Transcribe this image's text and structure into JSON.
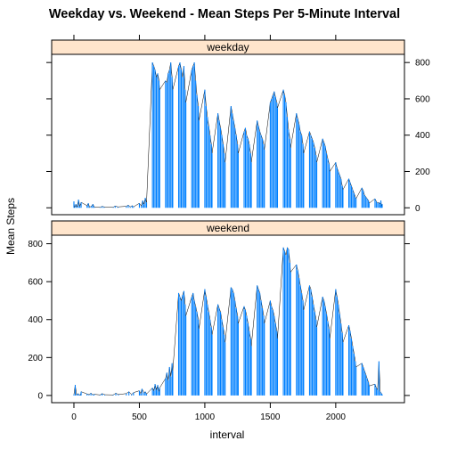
{
  "chart_data": {
    "type": "line",
    "title": "Weekday vs. Weekend - Mean Steps Per 5-Minute Interval",
    "xlabel": "interval",
    "ylabel": "Mean Steps",
    "xlim": [
      -170,
      2525
    ],
    "ylim": [
      -38,
      845
    ],
    "x_ticks": [
      0,
      500,
      1000,
      1500,
      2000
    ],
    "y_ticks": [
      0,
      200,
      400,
      600,
      800
    ],
    "plot_style": "h",
    "series_color": "#0080ff",
    "strip_fill": "#ffe5cc",
    "panels": [
      {
        "name": "weekday",
        "points": [
          [
            0,
            35
          ],
          [
            5,
            2
          ],
          [
            15,
            20
          ],
          [
            25,
            5
          ],
          [
            35,
            45
          ],
          [
            45,
            8
          ],
          [
            55,
            30
          ],
          [
            100,
            12
          ],
          [
            110,
            25
          ],
          [
            120,
            3
          ],
          [
            135,
            10
          ],
          [
            145,
            20
          ],
          [
            155,
            5
          ],
          [
            200,
            3
          ],
          [
            215,
            8
          ],
          [
            230,
            5
          ],
          [
            300,
            3
          ],
          [
            315,
            10
          ],
          [
            335,
            5
          ],
          [
            400,
            8
          ],
          [
            415,
            15
          ],
          [
            430,
            5
          ],
          [
            445,
            12
          ],
          [
            455,
            5
          ],
          [
            500,
            25
          ],
          [
            515,
            10
          ],
          [
            525,
            40
          ],
          [
            535,
            20
          ],
          [
            545,
            55
          ],
          [
            555,
            30
          ],
          [
            600,
            800
          ],
          [
            610,
            780
          ],
          [
            620,
            760
          ],
          [
            630,
            720
          ],
          [
            640,
            740
          ],
          [
            650,
            700
          ],
          [
            655,
            650
          ],
          [
            700,
            700
          ],
          [
            710,
            690
          ],
          [
            720,
            740
          ],
          [
            730,
            760
          ],
          [
            740,
            800
          ],
          [
            750,
            720
          ],
          [
            755,
            650
          ],
          [
            800,
            780
          ],
          [
            810,
            800
          ],
          [
            820,
            760
          ],
          [
            830,
            720
          ],
          [
            840,
            780
          ],
          [
            850,
            650
          ],
          [
            855,
            580
          ],
          [
            900,
            760
          ],
          [
            910,
            780
          ],
          [
            920,
            800
          ],
          [
            930,
            700
          ],
          [
            940,
            620
          ],
          [
            950,
            560
          ],
          [
            955,
            480
          ],
          [
            1000,
            650
          ],
          [
            1010,
            560
          ],
          [
            1020,
            500
          ],
          [
            1030,
            450
          ],
          [
            1040,
            400
          ],
          [
            1050,
            350
          ],
          [
            1055,
            300
          ],
          [
            1100,
            520
          ],
          [
            1110,
            480
          ],
          [
            1120,
            440
          ],
          [
            1130,
            400
          ],
          [
            1140,
            350
          ],
          [
            1150,
            300
          ],
          [
            1155,
            250
          ],
          [
            1200,
            560
          ],
          [
            1210,
            520
          ],
          [
            1220,
            480
          ],
          [
            1230,
            440
          ],
          [
            1240,
            400
          ],
          [
            1250,
            350
          ],
          [
            1255,
            300
          ],
          [
            1300,
            420
          ],
          [
            1310,
            440
          ],
          [
            1320,
            400
          ],
          [
            1330,
            380
          ],
          [
            1340,
            350
          ],
          [
            1350,
            300
          ],
          [
            1355,
            250
          ],
          [
            1400,
            480
          ],
          [
            1410,
            450
          ],
          [
            1420,
            420
          ],
          [
            1430,
            400
          ],
          [
            1440,
            380
          ],
          [
            1450,
            350
          ],
          [
            1455,
            320
          ],
          [
            1500,
            580
          ],
          [
            1510,
            600
          ],
          [
            1520,
            620
          ],
          [
            1530,
            640
          ],
          [
            1540,
            610
          ],
          [
            1550,
            580
          ],
          [
            1555,
            550
          ],
          [
            1600,
            650
          ],
          [
            1610,
            620
          ],
          [
            1620,
            580
          ],
          [
            1630,
            500
          ],
          [
            1640,
            430
          ],
          [
            1650,
            380
          ],
          [
            1655,
            330
          ],
          [
            1700,
            520
          ],
          [
            1710,
            490
          ],
          [
            1720,
            460
          ],
          [
            1730,
            420
          ],
          [
            1740,
            400
          ],
          [
            1750,
            350
          ],
          [
            1755,
            300
          ],
          [
            1800,
            420
          ],
          [
            1810,
            400
          ],
          [
            1820,
            380
          ],
          [
            1830,
            360
          ],
          [
            1840,
            330
          ],
          [
            1850,
            290
          ],
          [
            1855,
            250
          ],
          [
            1900,
            380
          ],
          [
            1910,
            360
          ],
          [
            1920,
            340
          ],
          [
            1930,
            300
          ],
          [
            1940,
            270
          ],
          [
            1950,
            240
          ],
          [
            1955,
            200
          ],
          [
            2000,
            250
          ],
          [
            2010,
            220
          ],
          [
            2020,
            200
          ],
          [
            2030,
            180
          ],
          [
            2040,
            160
          ],
          [
            2050,
            120
          ],
          [
            2055,
            100
          ],
          [
            2100,
            160
          ],
          [
            2110,
            140
          ],
          [
            2120,
            120
          ],
          [
            2130,
            100
          ],
          [
            2140,
            80
          ],
          [
            2150,
            60
          ],
          [
            2155,
            50
          ],
          [
            2200,
            110
          ],
          [
            2210,
            95
          ],
          [
            2220,
            70
          ],
          [
            2230,
            60
          ],
          [
            2240,
            50
          ],
          [
            2250,
            40
          ],
          [
            2255,
            25
          ],
          [
            2300,
            50
          ],
          [
            2310,
            35
          ],
          [
            2320,
            25
          ],
          [
            2330,
            30
          ],
          [
            2340,
            20
          ],
          [
            2345,
            40
          ],
          [
            2350,
            10
          ],
          [
            2355,
            20
          ]
        ]
      },
      {
        "name": "weekend",
        "points": [
          [
            0,
            5
          ],
          [
            10,
            55
          ],
          [
            20,
            3
          ],
          [
            30,
            10
          ],
          [
            40,
            4
          ],
          [
            50,
            3
          ],
          [
            55,
            20
          ],
          [
            100,
            8
          ],
          [
            115,
            5
          ],
          [
            130,
            12
          ],
          [
            145,
            4
          ],
          [
            155,
            6
          ],
          [
            200,
            3
          ],
          [
            215,
            10
          ],
          [
            235,
            4
          ],
          [
            300,
            3
          ],
          [
            320,
            12
          ],
          [
            340,
            5
          ],
          [
            400,
            10
          ],
          [
            420,
            20
          ],
          [
            440,
            5
          ],
          [
            455,
            15
          ],
          [
            500,
            25
          ],
          [
            510,
            10
          ],
          [
            520,
            35
          ],
          [
            535,
            15
          ],
          [
            545,
            20
          ],
          [
            555,
            8
          ],
          [
            600,
            40
          ],
          [
            610,
            25
          ],
          [
            620,
            60
          ],
          [
            630,
            30
          ],
          [
            640,
            55
          ],
          [
            650,
            20
          ],
          [
            655,
            40
          ],
          [
            700,
            90
          ],
          [
            710,
            120
          ],
          [
            720,
            80
          ],
          [
            730,
            150
          ],
          [
            740,
            100
          ],
          [
            750,
            170
          ],
          [
            755,
            130
          ],
          [
            800,
            540
          ],
          [
            810,
            520
          ],
          [
            820,
            500
          ],
          [
            830,
            530
          ],
          [
            840,
            550
          ],
          [
            850,
            480
          ],
          [
            855,
            420
          ],
          [
            900,
            520
          ],
          [
            910,
            540
          ],
          [
            920,
            500
          ],
          [
            930,
            470
          ],
          [
            940,
            440
          ],
          [
            950,
            400
          ],
          [
            955,
            350
          ],
          [
            1000,
            560
          ],
          [
            1010,
            520
          ],
          [
            1020,
            480
          ],
          [
            1030,
            440
          ],
          [
            1040,
            400
          ],
          [
            1050,
            360
          ],
          [
            1055,
            320
          ],
          [
            1100,
            480
          ],
          [
            1110,
            460
          ],
          [
            1120,
            440
          ],
          [
            1130,
            400
          ],
          [
            1140,
            360
          ],
          [
            1150,
            320
          ],
          [
            1155,
            280
          ],
          [
            1200,
            570
          ],
          [
            1210,
            560
          ],
          [
            1220,
            540
          ],
          [
            1230,
            500
          ],
          [
            1240,
            460
          ],
          [
            1250,
            420
          ],
          [
            1255,
            380
          ],
          [
            1300,
            470
          ],
          [
            1310,
            450
          ],
          [
            1320,
            420
          ],
          [
            1330,
            380
          ],
          [
            1340,
            340
          ],
          [
            1350,
            300
          ],
          [
            1355,
            260
          ],
          [
            1400,
            580
          ],
          [
            1410,
            560
          ],
          [
            1420,
            540
          ],
          [
            1430,
            500
          ],
          [
            1440,
            460
          ],
          [
            1450,
            420
          ],
          [
            1455,
            380
          ],
          [
            1500,
            500
          ],
          [
            1510,
            470
          ],
          [
            1520,
            450
          ],
          [
            1530,
            420
          ],
          [
            1540,
            380
          ],
          [
            1550,
            340
          ],
          [
            1555,
            300
          ],
          [
            1600,
            780
          ],
          [
            1610,
            760
          ],
          [
            1620,
            740
          ],
          [
            1630,
            780
          ],
          [
            1640,
            770
          ],
          [
            1650,
            700
          ],
          [
            1655,
            650
          ],
          [
            1700,
            690
          ],
          [
            1710,
            660
          ],
          [
            1720,
            620
          ],
          [
            1730,
            580
          ],
          [
            1740,
            540
          ],
          [
            1750,
            500
          ],
          [
            1755,
            450
          ],
          [
            1800,
            580
          ],
          [
            1810,
            560
          ],
          [
            1820,
            520
          ],
          [
            1830,
            480
          ],
          [
            1840,
            440
          ],
          [
            1850,
            400
          ],
          [
            1855,
            360
          ],
          [
            1900,
            520
          ],
          [
            1910,
            500
          ],
          [
            1920,
            470
          ],
          [
            1930,
            430
          ],
          [
            1940,
            390
          ],
          [
            1950,
            350
          ],
          [
            1955,
            300
          ],
          [
            2000,
            560
          ],
          [
            2010,
            520
          ],
          [
            2020,
            480
          ],
          [
            2030,
            430
          ],
          [
            2040,
            380
          ],
          [
            2050,
            330
          ],
          [
            2055,
            280
          ],
          [
            2100,
            370
          ],
          [
            2110,
            340
          ],
          [
            2120,
            300
          ],
          [
            2130,
            260
          ],
          [
            2140,
            220
          ],
          [
            2150,
            180
          ],
          [
            2155,
            150
          ],
          [
            2200,
            170
          ],
          [
            2210,
            150
          ],
          [
            2220,
            130
          ],
          [
            2230,
            110
          ],
          [
            2240,
            90
          ],
          [
            2250,
            70
          ],
          [
            2255,
            50
          ],
          [
            2300,
            60
          ],
          [
            2310,
            40
          ],
          [
            2320,
            30
          ],
          [
            2330,
            180
          ],
          [
            2340,
            20
          ],
          [
            2350,
            10
          ],
          [
            2355,
            5
          ]
        ]
      }
    ]
  }
}
